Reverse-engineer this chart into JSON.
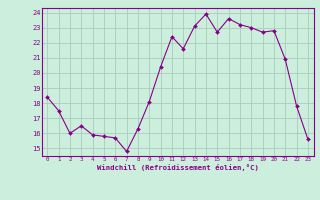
{
  "x": [
    0,
    1,
    2,
    3,
    4,
    5,
    6,
    7,
    8,
    9,
    10,
    11,
    12,
    13,
    14,
    15,
    16,
    17,
    18,
    19,
    20,
    21,
    22,
    23
  ],
  "y": [
    18.4,
    17.5,
    16.0,
    16.5,
    15.9,
    15.8,
    15.7,
    14.8,
    16.3,
    18.1,
    20.4,
    22.4,
    21.6,
    23.1,
    23.9,
    22.7,
    23.6,
    23.2,
    23.0,
    22.7,
    22.8,
    20.9,
    17.8,
    15.6
  ],
  "xlim": [
    -0.5,
    23.5
  ],
  "ylim": [
    14.5,
    24.3
  ],
  "yticks": [
    15,
    16,
    17,
    18,
    19,
    20,
    21,
    22,
    23,
    24
  ],
  "xticks": [
    0,
    1,
    2,
    3,
    4,
    5,
    6,
    7,
    8,
    9,
    10,
    11,
    12,
    13,
    14,
    15,
    16,
    17,
    18,
    19,
    20,
    21,
    22,
    23
  ],
  "xlabel": "Windchill (Refroidissement éolien,°C)",
  "line_color": "#880088",
  "marker_color": "#880088",
  "bg_color": "#cceedd",
  "grid_color": "#aaccbb",
  "axis_label_color": "#880088",
  "tick_color": "#880088",
  "border_color": "#880088"
}
